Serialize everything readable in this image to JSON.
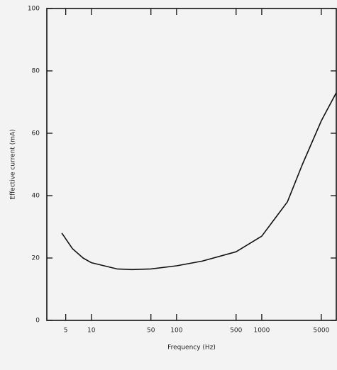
{
  "chart_data": {
    "type": "line",
    "x_label": "Frequency (Hz)",
    "y_label": "Effective current (mA)",
    "x": [
      4.5,
      6,
      8,
      10,
      20,
      30,
      50,
      100,
      200,
      500,
      1000,
      2000,
      3000,
      5000,
      7500
    ],
    "series": [
      {
        "color": "#111111",
        "values": [
          28,
          23,
          20,
          18.5,
          16.5,
          16.3,
          16.5,
          17.5,
          19,
          22,
          27,
          38,
          50,
          64,
          73
        ]
      }
    ],
    "xlim": [
      3,
      7500
    ],
    "xticks": [
      5,
      10,
      50,
      100,
      500,
      1000,
      5000
    ],
    "xscale": "log",
    "ylim": [
      0,
      100
    ],
    "yticks": [
      0,
      20,
      40,
      60,
      80,
      100
    ]
  }
}
